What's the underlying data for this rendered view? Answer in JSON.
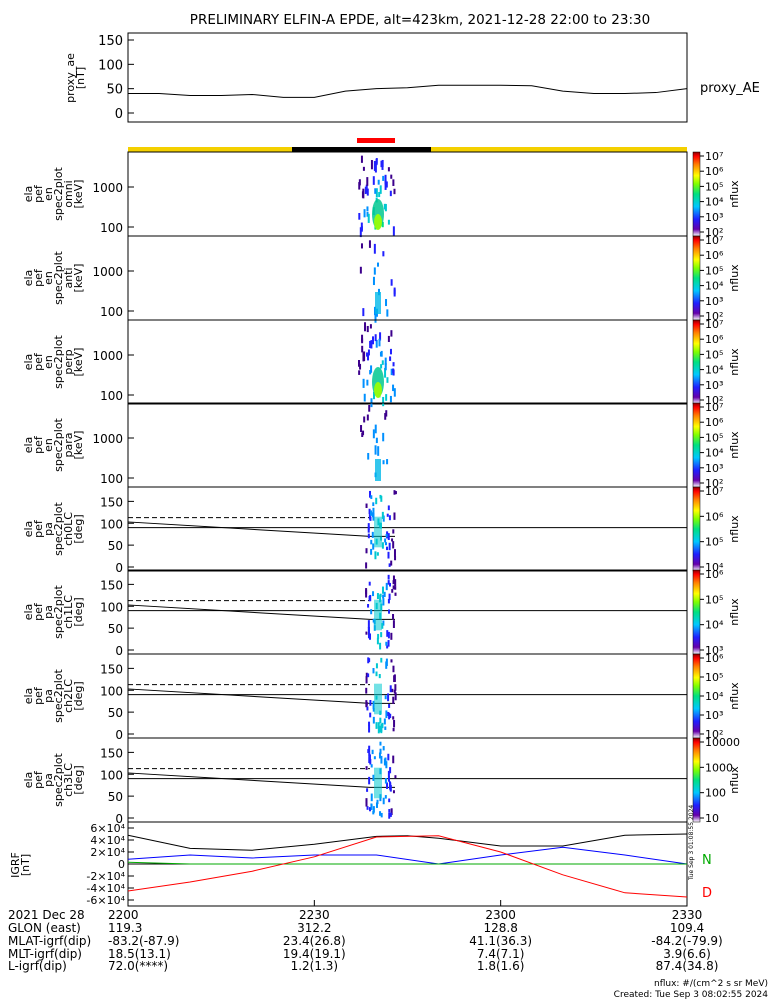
{
  "title": "PRELIMINARY ELFIN-A EPDE, alt=423km, 2021-12-28 22:00 to 23:30",
  "chart_data": [
    {
      "type": "line",
      "ylabel": [
        "proxy_ae",
        "[nT]"
      ],
      "legend": "proxy_AE",
      "ylim": [
        0,
        150
      ],
      "ticks": [
        "0",
        "50",
        "100",
        "150"
      ],
      "series": [
        {
          "name": "proxy_AE",
          "x": [
            0,
            5,
            10,
            15,
            20,
            25,
            30,
            35,
            40,
            45,
            50,
            55,
            60,
            65,
            70,
            75,
            80,
            85,
            90
          ],
          "values": [
            40,
            40,
            36,
            36,
            38,
            32,
            32,
            45,
            50,
            52,
            57,
            57,
            57,
            56,
            45,
            40,
            40,
            42,
            50
          ]
        }
      ]
    },
    {
      "type": "heatmap",
      "ylabel": [
        "ela",
        "pef",
        "en",
        "spec2plot",
        "omni",
        "[keV]"
      ],
      "ticks": [
        "100",
        "1000"
      ],
      "colorbar": {
        "label": "nflux",
        "ticks": [
          "10⁷",
          "10⁶",
          "10⁵",
          "10⁴",
          "10³",
          "10²"
        ]
      }
    },
    {
      "type": "heatmap",
      "ylabel": [
        "ela",
        "pef",
        "en",
        "spec2plot",
        "anti",
        "[keV]"
      ],
      "ticks": [
        "100",
        "1000"
      ],
      "colorbar": {
        "label": "nflux",
        "ticks": [
          "10⁷",
          "10⁶",
          "10⁵",
          "10⁴",
          "10³",
          "10²"
        ]
      }
    },
    {
      "type": "heatmap",
      "ylabel": [
        "ela",
        "pef",
        "en",
        "spec2plot",
        "perp",
        "[keV]"
      ],
      "ticks": [
        "100",
        "1000"
      ],
      "colorbar": {
        "label": "nflux",
        "ticks": [
          "10⁷",
          "10⁶",
          "10⁵",
          "10⁴",
          "10³",
          "10²"
        ]
      }
    },
    {
      "type": "heatmap",
      "ylabel": [
        "ela",
        "pef",
        "en",
        "spec2plot",
        "para",
        "[keV]"
      ],
      "ticks": [
        "100",
        "1000"
      ],
      "colorbar": {
        "label": "nflux",
        "ticks": [
          "10⁷",
          "10⁶",
          "10⁵",
          "10⁴",
          "10³",
          "10²"
        ]
      }
    },
    {
      "type": "heatmap",
      "ylabel": [
        "ela",
        "pef",
        "pa",
        "spec2plot",
        "ch0LC",
        "[deg]"
      ],
      "ticks": [
        "0",
        "50",
        "100",
        "150"
      ],
      "colorbar": {
        "label": "nflux",
        "ticks": [
          "10⁷",
          "10⁶",
          "10⁵",
          "10⁴"
        ]
      }
    },
    {
      "type": "heatmap",
      "ylabel": [
        "ela",
        "pef",
        "pa",
        "spec2plot",
        "ch1LC",
        "[deg]"
      ],
      "ticks": [
        "0",
        "50",
        "100",
        "150"
      ],
      "colorbar": {
        "label": "nflux",
        "ticks": [
          "10⁶",
          "10⁵",
          "10⁴",
          "10³"
        ]
      }
    },
    {
      "type": "heatmap",
      "ylabel": [
        "ela",
        "pef",
        "pa",
        "spec2plot",
        "ch2LC",
        "[deg]"
      ],
      "ticks": [
        "0",
        "50",
        "100",
        "150"
      ],
      "colorbar": {
        "label": "nflux",
        "ticks": [
          "10⁶",
          "10⁵",
          "10⁴",
          "10³",
          "10²"
        ]
      }
    },
    {
      "type": "heatmap",
      "ylabel": [
        "ela",
        "pef",
        "pa",
        "spec2plot",
        "ch3LC",
        "[deg]"
      ],
      "ticks": [
        "0",
        "50",
        "100",
        "150"
      ],
      "colorbar": {
        "label": "nflux",
        "ticks": [
          "10000",
          "1000",
          "100",
          "10"
        ]
      }
    },
    {
      "type": "line",
      "ylabel": [
        "IGRF",
        "[nT]"
      ],
      "ylim": [
        -60000,
        60000
      ],
      "ticks": [
        "-6×10⁴",
        "-4×10⁴",
        "-2×10⁴",
        "0",
        "2×10⁴",
        "4×10⁴",
        "6×10⁴"
      ],
      "series": [
        {
          "name": "",
          "color": "#000000",
          "x": [
            0,
            10,
            20,
            30,
            40,
            45,
            50,
            60,
            70,
            80,
            90
          ],
          "values": [
            48000,
            26000,
            23000,
            33000,
            46000,
            47000,
            43000,
            30000,
            30000,
            48000,
            50000
          ]
        },
        {
          "name": "",
          "color": "#0000ff",
          "x": [
            0,
            10,
            20,
            30,
            40,
            50,
            60,
            70,
            80,
            90
          ],
          "values": [
            8000,
            15000,
            10000,
            15000,
            15000,
            0,
            15000,
            28000,
            15000,
            0
          ]
        },
        {
          "name": "",
          "color": "#00aa00",
          "x": [
            0,
            10,
            30,
            50,
            70,
            90
          ],
          "values": [
            3000,
            0,
            0,
            0,
            0,
            0
          ]
        },
        {
          "name": "",
          "color": "#ff0000",
          "x": [
            0,
            10,
            20,
            30,
            40,
            50,
            60,
            70,
            80,
            90
          ],
          "values": [
            -45000,
            -30000,
            -12000,
            12000,
            45000,
            47000,
            20000,
            -18000,
            -48000,
            -55000
          ]
        }
      ]
    }
  ],
  "right_labels": {
    "n": "N",
    "d": "D"
  },
  "xaxis": {
    "row_labels": [
      "2021 Dec 28",
      "GLON (east)",
      "MLAT-igrf(dip)",
      "MLT-igrf(dip)",
      "L-igrf(dip)"
    ],
    "columns": [
      [
        "2200",
        "119.3",
        "-83.2(-87.9)",
        "18.5(13.1)",
        "72.0(****)"
      ],
      [
        "2230",
        "312.2",
        "23.4(26.8)",
        "19.4(19.1)",
        "1.2(1.3)"
      ],
      [
        "2300",
        "128.8",
        "41.1(36.3)",
        "7.4(7.1)",
        "1.8(1.6)"
      ],
      [
        "2330",
        "109.4",
        "-84.2(-79.9)",
        "3.9(6.6)",
        "87.4(34.8)"
      ]
    ]
  },
  "footer": {
    "units": "nflux: #/(cm^2 s sr MeV)",
    "created": "Created: Tue Sep  3 08:02:55 2024"
  },
  "side_stamp": "Tue Sep  3 01:08:55 2024"
}
